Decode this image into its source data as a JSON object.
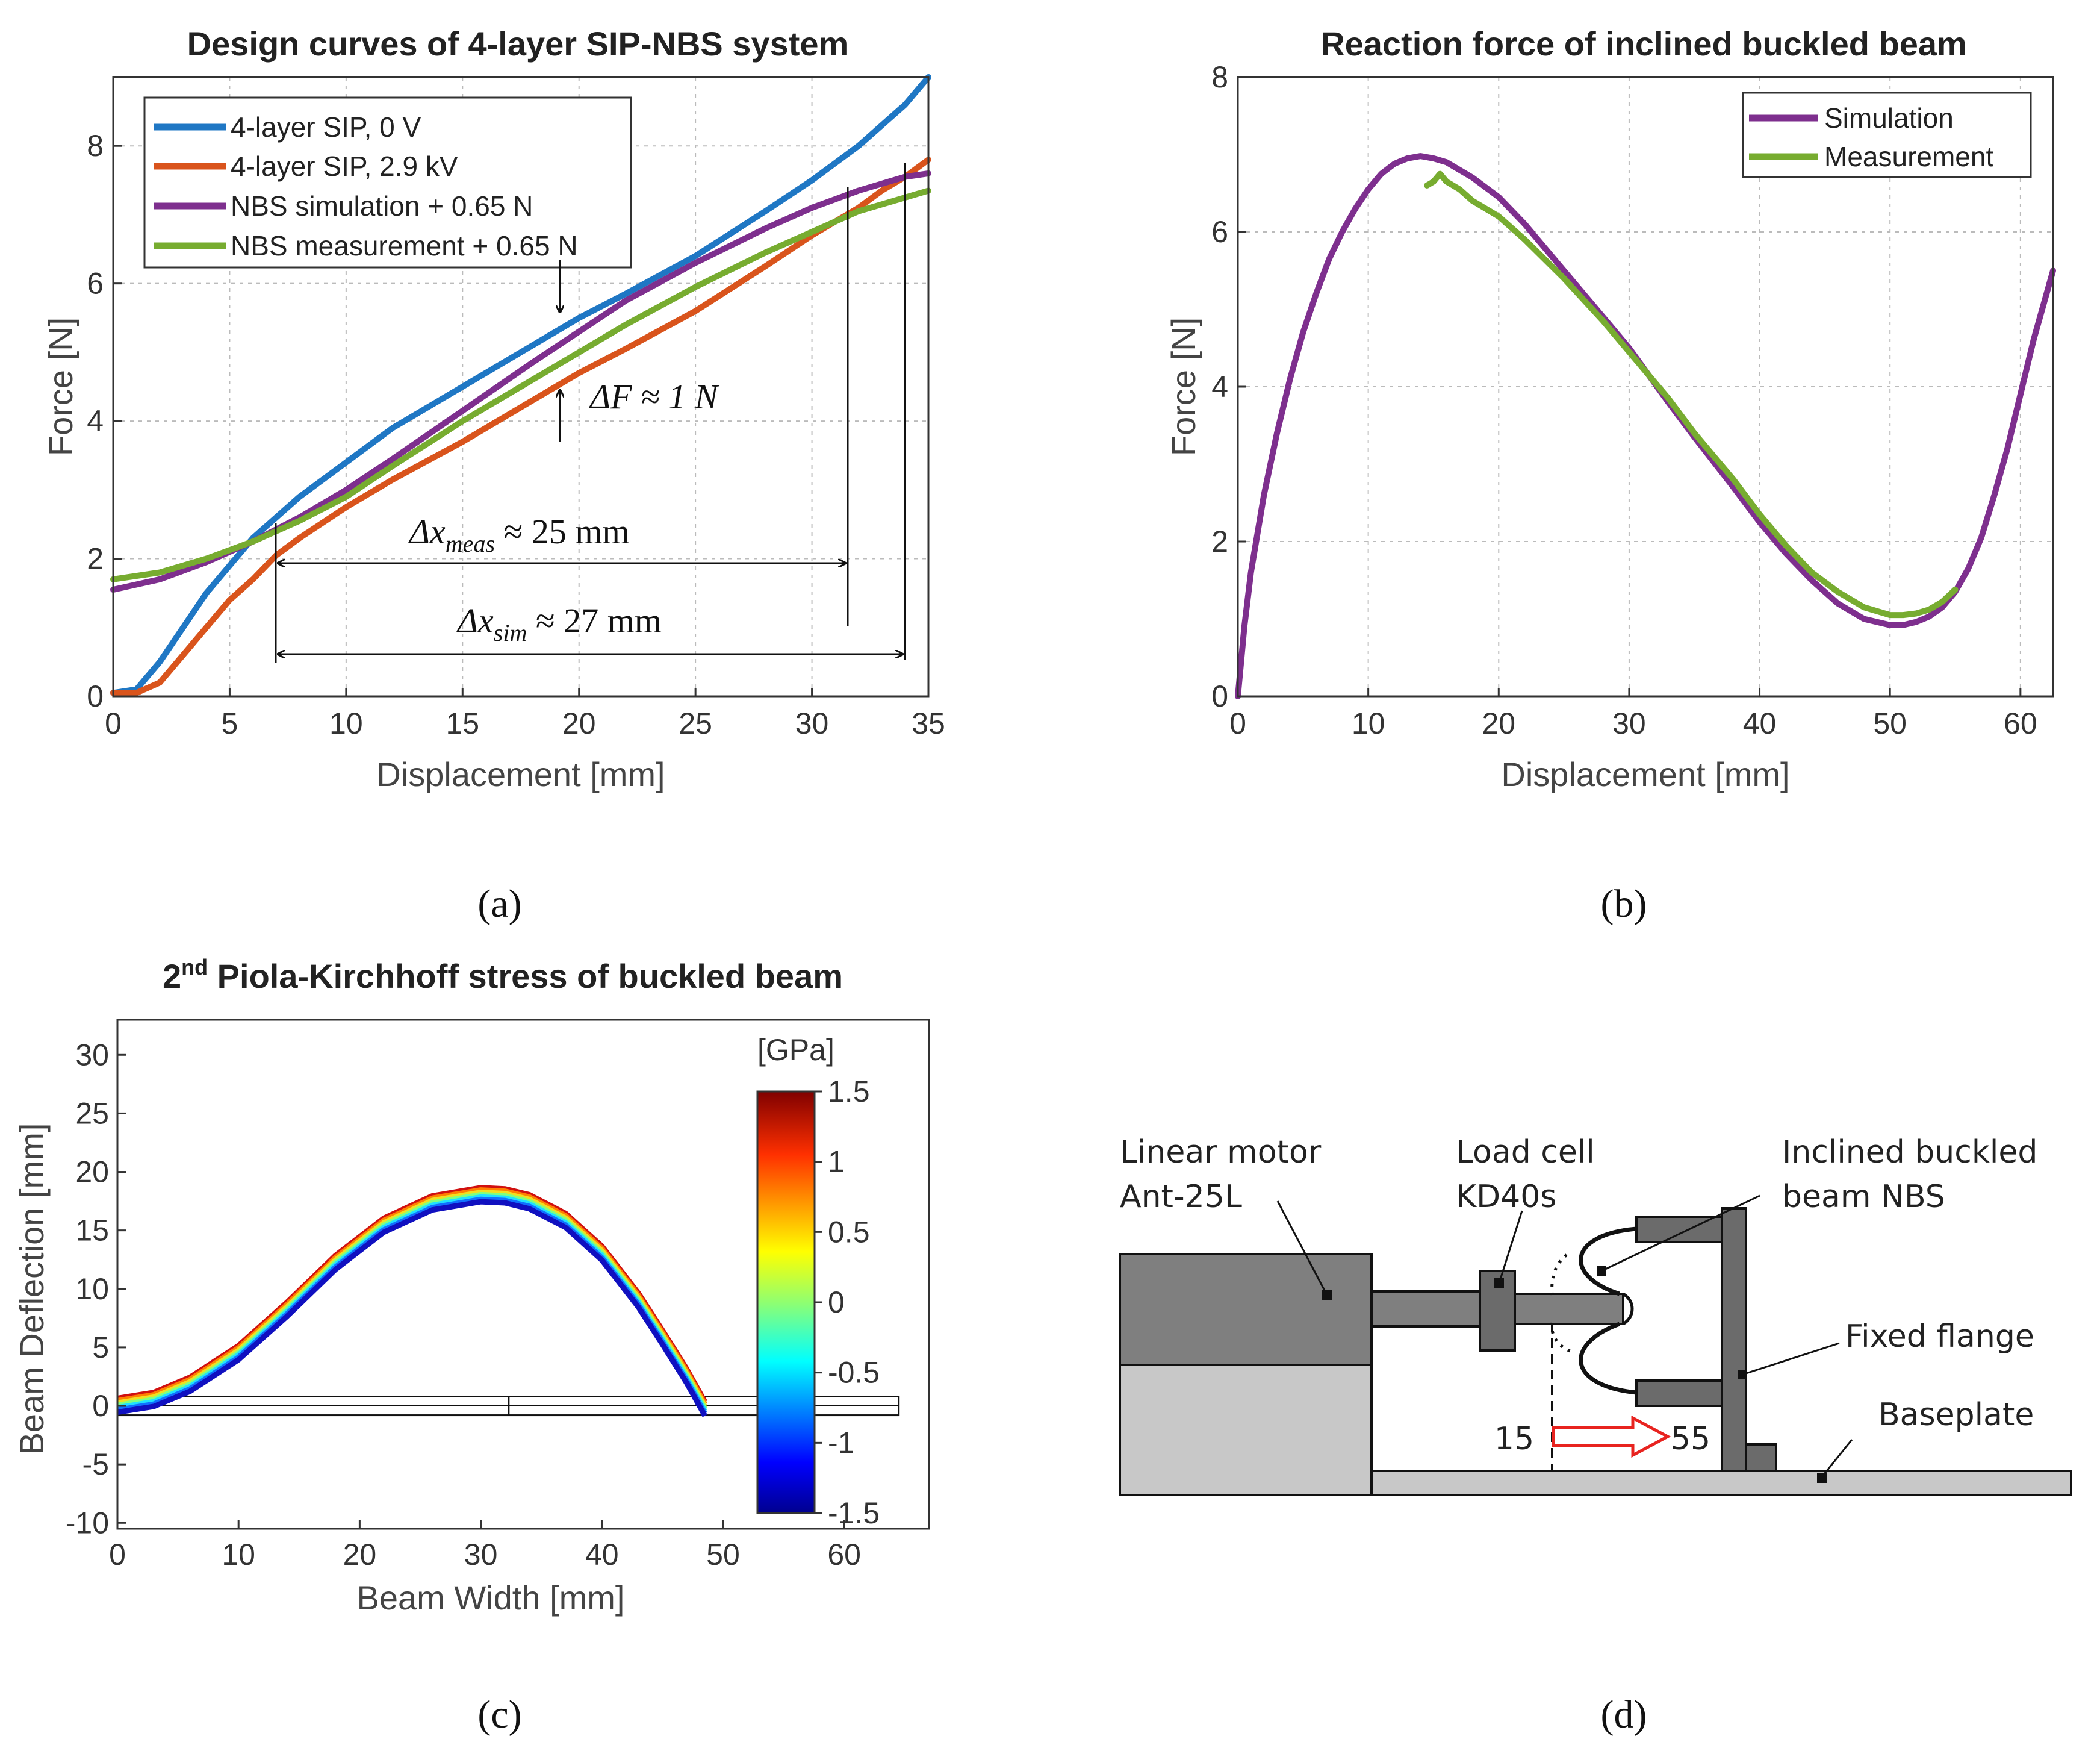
{
  "chart_data": [
    {
      "panel": "a",
      "type": "line",
      "title": "Design curves of 4-layer SIP-NBS system",
      "xlabel": "Displacement [mm]",
      "ylabel": "Force [N]",
      "xlim": [
        0,
        35
      ],
      "ylim": [
        0,
        9
      ],
      "xticks": [
        0,
        5,
        10,
        15,
        20,
        25,
        30,
        35
      ],
      "yticks": [
        0,
        2,
        4,
        6,
        8
      ],
      "grid": true,
      "legend_position": "top-left",
      "series": [
        {
          "name": "4-layer SIP, 0 V",
          "color": "#1f77c4",
          "x": [
            0,
            1,
            2,
            3,
            4,
            5,
            6,
            7,
            8,
            10,
            12,
            15,
            18,
            20,
            22,
            25,
            28,
            30,
            32,
            33,
            34,
            35
          ],
          "y": [
            0.05,
            0.1,
            0.5,
            1.0,
            1.5,
            1.9,
            2.3,
            2.6,
            2.9,
            3.4,
            3.9,
            4.5,
            5.1,
            5.5,
            5.85,
            6.4,
            7.05,
            7.5,
            8.0,
            8.3,
            8.6,
            9.0
          ]
        },
        {
          "name": "4-layer SIP, 2.9 kV",
          "color": "#d9541c",
          "x": [
            0,
            1,
            2,
            3,
            4,
            5,
            6,
            7,
            8,
            10,
            12,
            15,
            18,
            20,
            22,
            25,
            28,
            30,
            32,
            33,
            34,
            35
          ],
          "y": [
            0.05,
            0.05,
            0.2,
            0.6,
            1.0,
            1.4,
            1.7,
            2.05,
            2.3,
            2.75,
            3.15,
            3.7,
            4.3,
            4.7,
            5.05,
            5.6,
            6.25,
            6.7,
            7.1,
            7.35,
            7.55,
            7.8
          ]
        },
        {
          "name": "NBS simulation + 0.65 N",
          "color": "#7e2f8e",
          "x": [
            0,
            2,
            4,
            6,
            8,
            10,
            12,
            15,
            18,
            20,
            22,
            25,
            28,
            30,
            32,
            34,
            35
          ],
          "y": [
            1.55,
            1.7,
            1.95,
            2.25,
            2.6,
            3.0,
            3.45,
            4.15,
            4.85,
            5.3,
            5.75,
            6.3,
            6.8,
            7.1,
            7.35,
            7.55,
            7.6
          ]
        },
        {
          "name": "NBS measurement + 0.65 N",
          "color": "#77ac30",
          "x": [
            0,
            2,
            4,
            6,
            8,
            10,
            12,
            15,
            18,
            20,
            22,
            25,
            28,
            30,
            32,
            34,
            35
          ],
          "y": [
            1.7,
            1.8,
            2.0,
            2.25,
            2.55,
            2.9,
            3.35,
            4.0,
            4.6,
            5.0,
            5.4,
            5.95,
            6.45,
            6.75,
            7.05,
            7.25,
            7.35
          ]
        }
      ],
      "annotations": {
        "df_main": "ΔF ≈ 1 N",
        "dx_meas_pre": "Δx",
        "dx_meas_sub": "meas",
        "dx_meas_post": " ≈ 25 mm",
        "dx_sim_pre": "Δx",
        "dx_sim_sub": "sim",
        "dx_sim_post": " ≈ 27 mm"
      }
    },
    {
      "panel": "b",
      "type": "line",
      "title": "Reaction force of inclined buckled beam",
      "xlabel": "Displacement [mm]",
      "ylabel": "Force [N]",
      "xlim": [
        0,
        62.5
      ],
      "ylim": [
        0,
        8
      ],
      "xticks": [
        0,
        10,
        20,
        30,
        40,
        50,
        60
      ],
      "yticks": [
        0,
        2,
        4,
        6,
        8
      ],
      "grid": true,
      "legend_position": "top-right",
      "series": [
        {
          "name": "Simulation",
          "color": "#7e2f8e",
          "x": [
            0,
            0.5,
            1,
            2,
            3,
            4,
            5,
            6,
            7,
            8,
            9,
            10,
            11,
            12,
            13,
            14,
            15,
            16,
            18,
            20,
            22,
            25,
            28,
            30,
            33,
            35,
            38,
            40,
            42,
            44,
            46,
            48,
            50,
            51,
            52,
            53,
            54,
            55,
            56,
            57,
            58,
            59,
            60,
            61,
            62.5
          ],
          "y": [
            0,
            0.9,
            1.6,
            2.6,
            3.4,
            4.1,
            4.7,
            5.2,
            5.65,
            6.0,
            6.3,
            6.55,
            6.75,
            6.88,
            6.95,
            6.98,
            6.95,
            6.9,
            6.7,
            6.45,
            6.1,
            5.5,
            4.9,
            4.5,
            3.8,
            3.35,
            2.7,
            2.25,
            1.85,
            1.5,
            1.2,
            1.0,
            0.92,
            0.92,
            0.96,
            1.03,
            1.15,
            1.35,
            1.65,
            2.05,
            2.6,
            3.2,
            3.9,
            4.6,
            5.5
          ]
        },
        {
          "name": "Measurement",
          "color": "#77ac30",
          "x": [
            14.5,
            15,
            15.5,
            16,
            17,
            18,
            20,
            22,
            25,
            28,
            30,
            33,
            35,
            38,
            40,
            42,
            44,
            46,
            48,
            50,
            51,
            52,
            53,
            54,
            55
          ],
          "y": [
            6.6,
            6.65,
            6.75,
            6.65,
            6.55,
            6.4,
            6.2,
            5.9,
            5.4,
            4.85,
            4.45,
            3.85,
            3.4,
            2.8,
            2.35,
            1.95,
            1.6,
            1.35,
            1.15,
            1.05,
            1.05,
            1.07,
            1.12,
            1.22,
            1.38
          ]
        }
      ]
    },
    {
      "panel": "c",
      "type": "line",
      "title_main": "2",
      "title_sup": "nd",
      "title_rest": " Piola-Kirchhoff  stress of buckled  beam",
      "xlabel": "Beam Width [mm]",
      "ylabel": "Beam Deflection [mm]",
      "xlim": [
        0,
        67
      ],
      "ylim": [
        -10.5,
        33
      ],
      "xticks": [
        0,
        10,
        20,
        30,
        40,
        50,
        60
      ],
      "yticks": [
        -10,
        -5,
        0,
        5,
        10,
        15,
        20,
        25,
        30
      ],
      "grid": false,
      "colorbar": {
        "unit": "[GPa]",
        "min": -1.5,
        "max": 1.5,
        "ticks": [
          "1.5",
          "1",
          "0.5",
          "0",
          "-0.5",
          "-1",
          "-1.5"
        ],
        "tick_values": [
          1.5,
          1,
          0.5,
          0,
          -0.5,
          -1,
          -1.5
        ]
      },
      "beam_centerline": {
        "x": [
          0,
          3,
          6,
          10,
          14,
          18,
          22,
          26,
          30,
          32,
          34,
          37,
          40,
          43,
          45,
          47,
          48.5
        ],
        "y": [
          0,
          0.5,
          1.8,
          4.5,
          8.2,
          12.2,
          15.4,
          17.3,
          18.0,
          17.9,
          17.4,
          15.8,
          13.0,
          9.0,
          5.8,
          2.5,
          -0.3
        ]
      },
      "undeformed_beam": {
        "x0": 0,
        "x1": 64.5,
        "y": 0,
        "half_thickness": 0.8,
        "mark_x": 32.3
      }
    }
  ],
  "diagram_d": {
    "labels": {
      "linear_motor_1": "Linear motor",
      "linear_motor_2": "Ant-25L",
      "load_cell_1": "Load cell",
      "load_cell_2": "KD40s",
      "nbs_1": "Inclined buckled",
      "nbs_2": "beam NBS",
      "flange": "Fixed flange",
      "baseplate": "Baseplate",
      "start_pos": "15",
      "end_pos": "55"
    },
    "colors": {
      "dark": "#6b6b6b",
      "medium": "#7f7f7f",
      "light": "#c8c8c8",
      "arrow": "#e8231f"
    }
  },
  "panel_labels": {
    "a": "(a)",
    "b": "(b)",
    "c": "(c)",
    "d": "(d)"
  }
}
